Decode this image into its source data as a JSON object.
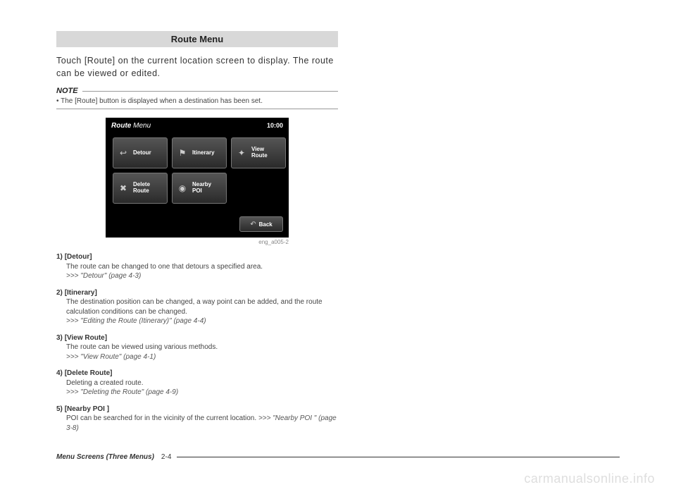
{
  "header": {
    "title": "Route Menu"
  },
  "intro": "Touch [Route] on the current location screen to display. The route can be viewed or edited.",
  "note": {
    "label": "NOTE",
    "bullet": "•",
    "text": "The [Route] button is displayed when a destination has been set."
  },
  "screenshot": {
    "title_prefix": "Route",
    "title_suffix": "Menu",
    "clock": "10:00",
    "buttons": [
      {
        "label": "Detour"
      },
      {
        "label": "Itinerary"
      },
      {
        "label": "View\nRoute"
      },
      {
        "label": "Delete\nRoute"
      },
      {
        "label": "Nearby\nPOI"
      }
    ],
    "back": "Back",
    "caption": "eng_a005-2",
    "colors": {
      "bg": "#000000",
      "btn_border": "#777777",
      "btn_grad_top": "#555555",
      "btn_grad_bottom": "#2a2a2a",
      "text": "#ffffff"
    }
  },
  "items": [
    {
      "num": "1)",
      "title": "[Detour]",
      "desc": "The route can be changed to one that detours a specified area.",
      "ref": ">>> \"Detour\" (page 4-3)"
    },
    {
      "num": "2)",
      "title": "[Itinerary]",
      "desc": "The destination position can be changed, a way point can be added, and the route calculation conditions can be changed.",
      "ref": ">>> \"Editing the Route (Itinerary)\" (page 4-4)"
    },
    {
      "num": "3)",
      "title": "[View Route]",
      "desc": "The route can be viewed using various methods.",
      "ref": ">>> \"View Route\" (page 4-1)"
    },
    {
      "num": "4)",
      "title": "[Delete Route]",
      "desc": "Deleting a created route.",
      "ref": ">>> \"Deleting the Route\" (page 4-9)"
    },
    {
      "num": "5)",
      "title": "[Nearby POI ]",
      "desc": "POI can be searched for in the vicinity of the current location.",
      "ref": ">>> \"Nearby POI \" (page 3-8)",
      "desc_inline_ref": true
    }
  ],
  "footer": {
    "label": "Menu Screens (Three Menus)",
    "page": "2-4"
  },
  "watermark": "carmanualsonline.info"
}
